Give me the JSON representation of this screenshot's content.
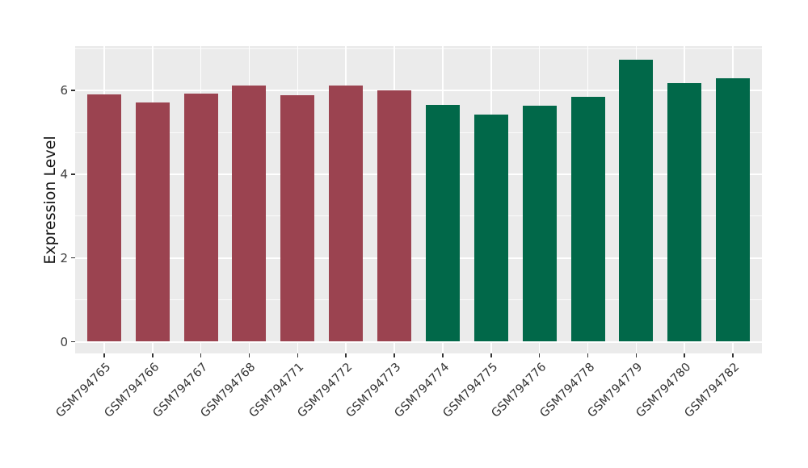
{
  "chart_data": {
    "type": "bar",
    "title": "",
    "xlabel": "",
    "ylabel": "Expression Level",
    "categories": [
      "GSM794765",
      "GSM794766",
      "GSM794767",
      "GSM794768",
      "GSM794771",
      "GSM794772",
      "GSM794773",
      "GSM794774",
      "GSM794775",
      "GSM794776",
      "GSM794778",
      "GSM794779",
      "GSM794780",
      "GSM794782"
    ],
    "values": [
      5.9,
      5.71,
      5.92,
      6.11,
      5.88,
      6.11,
      6.0,
      5.66,
      5.42,
      5.64,
      5.85,
      6.73,
      6.17,
      6.29
    ],
    "bar_colors": [
      "#9B4350",
      "#9B4350",
      "#9B4350",
      "#9B4350",
      "#9B4350",
      "#9B4350",
      "#9B4350",
      "#016849",
      "#016849",
      "#016849",
      "#016849",
      "#016849",
      "#016849",
      "#016849"
    ],
    "group_colors": {
      "left_group": "#9B4350",
      "right_group": "#016849"
    },
    "yticks_major": [
      0,
      2,
      4,
      6
    ],
    "yticks_minor": [
      1,
      3,
      5,
      7
    ],
    "ylim": [
      -0.3,
      7.06
    ],
    "legend_position": "none",
    "grid": "on",
    "panel_bg": "#EBEBEB",
    "grid_color": "#FFFFFF"
  }
}
